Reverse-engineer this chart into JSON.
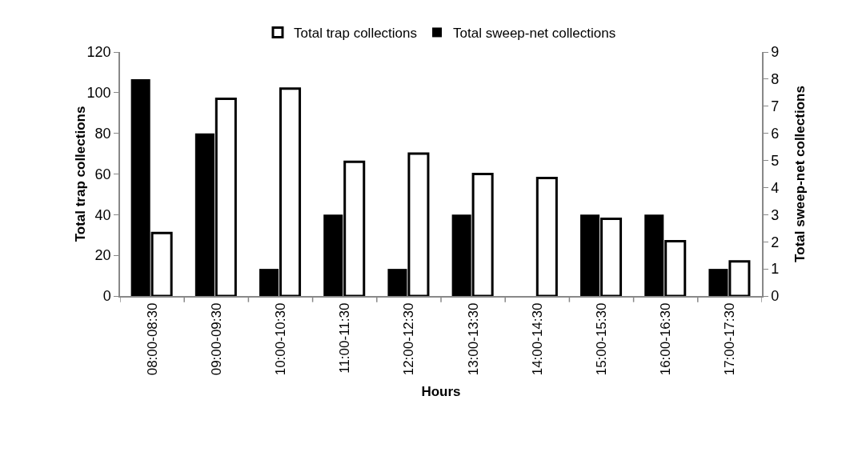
{
  "chart_data": {
    "type": "bar",
    "xlabel": "Hours",
    "ylabel": "Total trap collections",
    "y2label": "Total sweep-net collections",
    "categories": [
      "08:00-08:30",
      "09:00-09:30",
      "10:00-10:30",
      "11:00-11:30",
      "12:00-12:30",
      "13:00-13:30",
      "14:00-14:30",
      "15:00-15:30",
      "16:00-16:30",
      "17:00-17:30"
    ],
    "series": [
      {
        "name": "Total trap collections",
        "color": "#ffffff",
        "values": [
          31,
          97,
          102,
          66,
          70,
          60,
          58,
          38,
          27,
          17
        ]
      },
      {
        "name": "Total sweep-net collections",
        "color": "#000000",
        "axis": "y2",
        "values": [
          8,
          6,
          1,
          3,
          1,
          3,
          0,
          3,
          3,
          1
        ]
      }
    ],
    "ylim": [
      0,
      120
    ],
    "yticks": [
      0,
      20,
      40,
      60,
      80,
      100,
      120
    ],
    "y2lim": [
      0,
      9
    ],
    "y2ticks": [
      0,
      1,
      2,
      3,
      4,
      5,
      6,
      7,
      8,
      9
    ],
    "grid": false,
    "legend": "top"
  }
}
